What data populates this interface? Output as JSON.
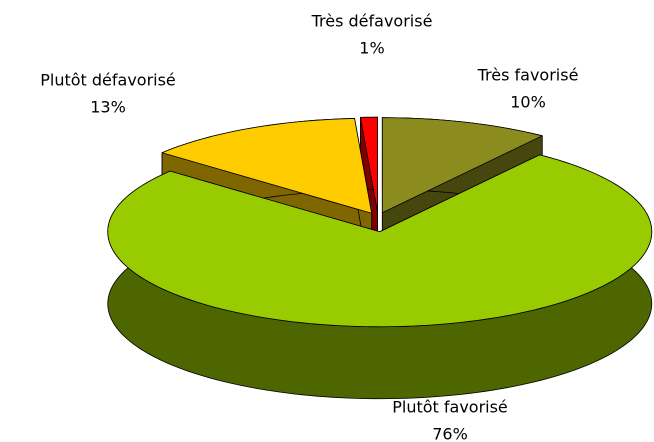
{
  "chart_data": {
    "type": "pie3d",
    "categories": [
      "Très favorisé",
      "Plutôt favorisé",
      "Plutôt défavorisé",
      "Très défavorisé"
    ],
    "values": [
      10,
      76,
      13,
      1
    ],
    "value_labels": [
      "10%",
      "76%",
      "13%",
      "1%"
    ],
    "colors": [
      "#8c8c1e",
      "#99cc00",
      "#ffcc00",
      "#ff0000"
    ]
  }
}
